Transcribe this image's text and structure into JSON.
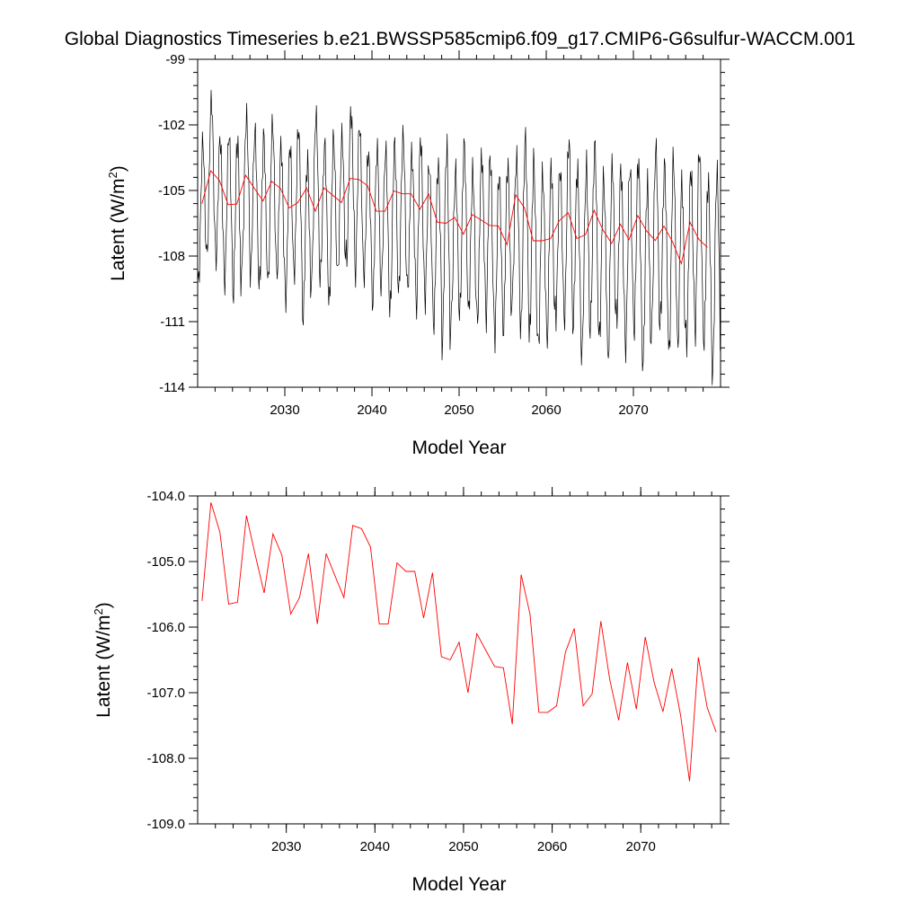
{
  "figure": {
    "title": "Global Diagnostics Timeseries b.e21.BWSSP585cmip6.f09_g17.CMIP6-G6sulfur-WACCM.001"
  },
  "colors": {
    "monthly": "#000000",
    "annual": "#ff0000",
    "axes": "#000000"
  },
  "chart_data": [
    {
      "type": "line",
      "xlabel": "Model Year",
      "ylabel_main": "Latent (W/m",
      "ylabel_sup": "2",
      "ylabel_end": ")",
      "xlim": [
        2020,
        2080
      ],
      "ylim": [
        -114,
        -99
      ],
      "xticks": [
        2030,
        2040,
        2050,
        2060,
        2070
      ],
      "xtick_labels": [
        "2030",
        "2040",
        "2050",
        "2060",
        "2070"
      ],
      "yticks": [
        -114,
        -111,
        -108,
        -105,
        -102,
        -99
      ],
      "ytick_labels": [
        "-114",
        "-111",
        "-108",
        "-105",
        "-102",
        "-99"
      ],
      "series": [
        {
          "style": "monthly",
          "note_shape": "seasonal oscillation, mean follows annual curve, amplitude about ±3.7 W/m2",
          "annual_max": [
            -101.8,
            -100.4,
            -101.5,
            -102.0,
            -101.7,
            -100.8,
            -101.9,
            -101.2,
            -101.5,
            -102.0,
            -102.2,
            -101.6,
            -102.3,
            -101.1,
            -101.8,
            -102.0,
            -101.9,
            -100.3,
            -101.7,
            -102.1,
            -102.6,
            -102.4,
            -101.9,
            -102.0,
            -102.1,
            -102.3,
            -102.8,
            -103.0,
            -102.4,
            -102.9,
            -102.6,
            -103.0,
            -102.8,
            -102.7,
            -103.0,
            -103.5,
            -102.3,
            -102.1,
            -102.7,
            -103.2,
            -103.5,
            -102.6,
            -102.3,
            -102.9,
            -103.0,
            -102.4,
            -103.1,
            -103.3,
            -102.8,
            -103.2,
            -102.9,
            -103.4,
            -102.6,
            -102.5,
            -103.0,
            -103.8,
            -102.9,
            -102.7,
            -103.1,
            -103.6
          ],
          "annual_min": [
            -109.9,
            -108.6,
            -109.3,
            -109.8,
            -111.1,
            -108.7,
            -109.5,
            -110.4,
            -109.6,
            -110.2,
            -110.6,
            -109.7,
            -111.8,
            -109.4,
            -110.1,
            -110.5,
            -109.8,
            -108.9,
            -109.5,
            -110.0,
            -110.5,
            -110.3,
            -111.0,
            -110.4,
            -110.6,
            -110.9,
            -111.3,
            -111.6,
            -113.2,
            -111.7,
            -111.0,
            -111.9,
            -111.4,
            -112.2,
            -112.5,
            -112.0,
            -111.1,
            -111.8,
            -113.1,
            -112.8,
            -112.9,
            -111.9,
            -111.4,
            -112.6,
            -113.0,
            -112.1,
            -112.8,
            -113.5,
            -112.3,
            -112.9,
            -112.6,
            -113.8,
            -112.0,
            -112.4,
            -112.9,
            -113.6,
            -112.7,
            -112.3,
            -113.2,
            -113.9
          ]
        },
        {
          "style": "annual",
          "x": [
            2020.5,
            2021.5,
            2022.5,
            2023.5,
            2024.5,
            2025.5,
            2026.5,
            2027.5,
            2028.5,
            2029.5,
            2030.5,
            2031.5,
            2032.5,
            2033.5,
            2034.5,
            2035.5,
            2036.5,
            2037.5,
            2038.5,
            2039.5,
            2040.5,
            2041.5,
            2042.5,
            2043.5,
            2044.5,
            2045.5,
            2046.5,
            2047.5,
            2048.5,
            2049.5,
            2050.5,
            2051.5,
            2052.5,
            2053.5,
            2054.5,
            2055.5,
            2056.5,
            2057.5,
            2058.5,
            2059.5,
            2060.5,
            2061.5,
            2062.5,
            2063.5,
            2064.5,
            2065.5,
            2066.5,
            2067.5,
            2068.5,
            2069.5,
            2070.5,
            2071.5,
            2072.5,
            2073.5,
            2074.5,
            2075.5,
            2076.5,
            2077.5,
            2078.5
          ],
          "y": [
            -105.6,
            -104.1,
            -104.55,
            -105.65,
            -105.62,
            -104.3,
            -104.9,
            -105.48,
            -104.58,
            -104.9,
            -105.8,
            -105.55,
            -104.88,
            -105.95,
            -104.88,
            -105.22,
            -105.55,
            -104.45,
            -104.5,
            -104.78,
            -105.95,
            -105.95,
            -105.02,
            -105.15,
            -105.15,
            -105.86,
            -105.17,
            -106.45,
            -106.5,
            -106.23,
            -107.0,
            -106.1,
            -106.35,
            -106.6,
            -106.62,
            -107.48,
            -105.2,
            -105.8,
            -107.3,
            -107.3,
            -107.2,
            -106.38,
            -106.02,
            -107.2,
            -107.02,
            -105.91,
            -106.8,
            -107.42,
            -106.54,
            -107.25,
            -106.15,
            -106.84,
            -107.29,
            -106.63,
            -107.35,
            -108.35,
            -106.46,
            -107.23,
            -107.6
          ]
        }
      ]
    },
    {
      "type": "line",
      "xlabel": "Model Year",
      "ylabel_main": "Latent (W/m",
      "ylabel_sup": "2",
      "ylabel_end": ")",
      "xlim": [
        2020,
        2079
      ],
      "ylim": [
        -109,
        -104
      ],
      "xticks": [
        2030,
        2040,
        2050,
        2060,
        2070
      ],
      "xtick_labels": [
        "2030",
        "2040",
        "2050",
        "2060",
        "2070"
      ],
      "yticks": [
        -109,
        -108,
        -107,
        -106,
        -105,
        -104
      ],
      "ytick_labels": [
        "-109.0",
        "-108.0",
        "-107.0",
        "-106.0",
        "-105.0",
        "-104.0"
      ],
      "series": [
        {
          "style": "annual",
          "x": [
            2020.5,
            2021.5,
            2022.5,
            2023.5,
            2024.5,
            2025.5,
            2026.5,
            2027.5,
            2028.5,
            2029.5,
            2030.5,
            2031.5,
            2032.5,
            2033.5,
            2034.5,
            2035.5,
            2036.5,
            2037.5,
            2038.5,
            2039.5,
            2040.5,
            2041.5,
            2042.5,
            2043.5,
            2044.5,
            2045.5,
            2046.5,
            2047.5,
            2048.5,
            2049.5,
            2050.5,
            2051.5,
            2052.5,
            2053.5,
            2054.5,
            2055.5,
            2056.5,
            2057.5,
            2058.5,
            2059.5,
            2060.5,
            2061.5,
            2062.5,
            2063.5,
            2064.5,
            2065.5,
            2066.5,
            2067.5,
            2068.5,
            2069.5,
            2070.5,
            2071.5,
            2072.5,
            2073.5,
            2074.5,
            2075.5,
            2076.5,
            2077.5,
            2078.5
          ],
          "y": [
            -105.6,
            -104.1,
            -104.55,
            -105.65,
            -105.62,
            -104.3,
            -104.9,
            -105.48,
            -104.58,
            -104.9,
            -105.8,
            -105.55,
            -104.88,
            -105.95,
            -104.88,
            -105.22,
            -105.55,
            -104.45,
            -104.5,
            -104.78,
            -105.95,
            -105.95,
            -105.02,
            -105.15,
            -105.15,
            -105.86,
            -105.17,
            -106.45,
            -106.5,
            -106.23,
            -107.0,
            -106.1,
            -106.35,
            -106.6,
            -106.62,
            -107.48,
            -105.2,
            -105.8,
            -107.3,
            -107.3,
            -107.2,
            -106.38,
            -106.02,
            -107.2,
            -107.02,
            -105.91,
            -106.8,
            -107.42,
            -106.54,
            -107.25,
            -106.15,
            -106.84,
            -107.29,
            -106.63,
            -107.35,
            -108.35,
            -106.46,
            -107.23,
            -107.6
          ]
        }
      ]
    }
  ]
}
